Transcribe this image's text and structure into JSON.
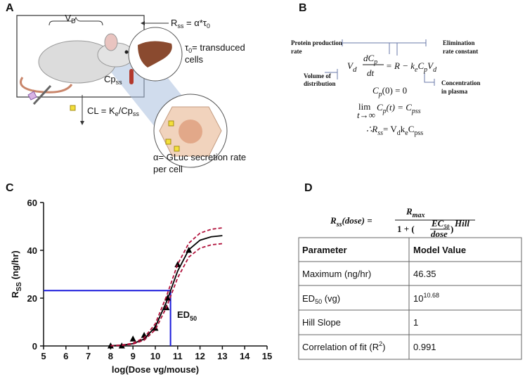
{
  "panel_labels": [
    "A",
    "B",
    "C",
    "D"
  ],
  "panel_a": {
    "vd": [
      "V",
      "D"
    ],
    "rss": [
      "R",
      "ss",
      " = α*τ",
      "0"
    ],
    "tau": [
      "τ",
      "0",
      "= transduced"
    ],
    "tau2": "cells",
    "cp": [
      "Cp",
      "ss"
    ],
    "cl": [
      "CL = K",
      "e",
      "/Cp",
      "ss"
    ],
    "alpha": "α= GLuc secretion rate",
    "alpha2": "per cell"
  },
  "panel_b": {
    "protein": [
      "Protein production",
      "rate"
    ],
    "volume": [
      "Volume of",
      "distribution"
    ],
    "elim": [
      "Elimination",
      "rate constant"
    ],
    "conc": [
      "Concentration",
      "in plasma"
    ],
    "eq1": {
      "lhs": [
        "V",
        "d"
      ],
      "num": [
        "dC",
        "p"
      ],
      "den": "dt",
      "rhs": [
        "= R − k",
        "e",
        "C",
        "p",
        "V",
        "d"
      ]
    },
    "eq2": [
      "C",
      "p",
      "(0) = 0"
    ],
    "eq3": {
      "lim": "lim",
      "under": "t→∞",
      "rest": [
        "C",
        "p",
        "(t) = C",
        "pss"
      ]
    },
    "eq4": [
      "∴R",
      "ss",
      "= V",
      "d",
      "k",
      "e",
      "C",
      "pss"
    ]
  },
  "chart_data": {
    "type": "line",
    "xlabel": "log(Dose vg/mouse)",
    "ylabel": [
      "R",
      "SS",
      " (ng/hr)"
    ],
    "annotation": [
      "ED",
      "50"
    ],
    "xlim": [
      5,
      15
    ],
    "xticks": [
      5,
      6,
      7,
      8,
      9,
      10,
      11,
      12,
      13,
      14,
      15
    ],
    "ylim": [
      0,
      60
    ],
    "yticks": [
      0,
      20,
      40,
      60
    ],
    "series": [
      {
        "color": "#000000",
        "marker": "triangle",
        "x": [
          8,
          8.5,
          9,
          9.5,
          10,
          10.5,
          10.55,
          11,
          11.5
        ],
        "values": [
          0,
          0,
          2.9,
          4.4,
          7.4,
          16,
          20,
          34,
          40
        ]
      },
      {
        "color": "#000000",
        "x": [
          8,
          8.5,
          9,
          9.5,
          10,
          10.5,
          11,
          11.5,
          12,
          12.5,
          13
        ],
        "values": [
          0.097,
          0.305,
          0.95,
          2.87,
          8.01,
          18.44,
          31.34,
          40.26,
          44.23,
          45.66,
          46.13
        ]
      },
      {
        "color": "#b0103a",
        "dash": true,
        "x": [
          8,
          8.5,
          9,
          9.5,
          10,
          10.5,
          11,
          11.5,
          12,
          12.5,
          13
        ],
        "values": [
          0.12,
          0.38,
          1.15,
          3.4,
          9.3,
          20.8,
          34.2,
          43,
          47.2,
          48.8,
          49.4
        ]
      },
      {
        "color": "#b0103a",
        "dash": true,
        "x": [
          8,
          8.5,
          9,
          9.5,
          10,
          10.5,
          11,
          11.5,
          12,
          12.5,
          13
        ],
        "values": [
          0.08,
          0.24,
          0.78,
          2.4,
          6.8,
          16.2,
          28.5,
          37.2,
          40.9,
          42.3,
          42.8
        ]
      }
    ],
    "ed50_guide": {
      "x": 10.68,
      "y": 23.18,
      "color": "#1a1adb"
    }
  },
  "panel_d": {
    "formula": {
      "lhs": [
        "R",
        "ss",
        "(dose) ="
      ],
      "num": [
        "R",
        "max"
      ],
      "den": [
        "1 + (",
        ")"
      ],
      "frac_num": [
        "EC",
        "50"
      ],
      "frac_den": "dose",
      "sup": "Hill"
    },
    "table": {
      "header": [
        "Parameter",
        "Model Value"
      ],
      "rows": [
        [
          "Maximum (ng/hr)",
          "46.35"
        ],
        [
          [
            "ED",
            "50",
            " (vg)"
          ],
          [
            "10",
            "10.68"
          ]
        ],
        [
          "Hill Slope",
          "1"
        ],
        [
          [
            "Correlation of fit (R",
            "2",
            ")"
          ],
          "0.991"
        ]
      ]
    }
  }
}
